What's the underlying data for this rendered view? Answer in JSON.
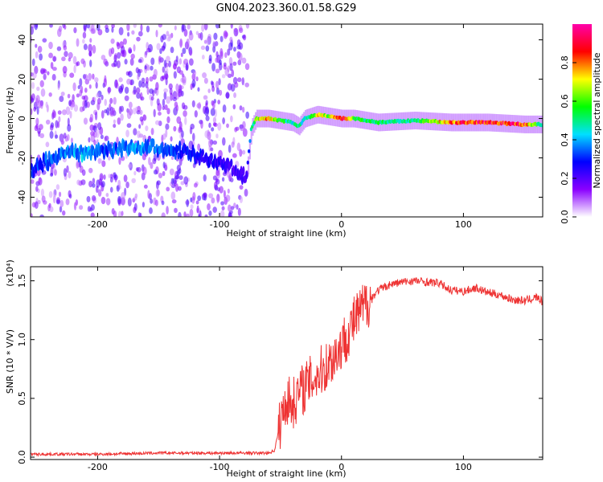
{
  "figure_title": "GN04.2023.360.01.58.G29",
  "chart_data": [
    {
      "type": "heatmap",
      "title": "GN04.2023.360.01.58.G29",
      "xlabel": "Height of straight line (km)",
      "ylabel": "Frequency (Hz)",
      "xlim": [
        -255,
        165
      ],
      "ylim": [
        -50,
        48
      ],
      "x_ticks": [
        -200,
        -100,
        0,
        100
      ],
      "x_tick_labels": [
        "-200",
        "-100",
        "0",
        "100"
      ],
      "y_ticks": [
        -40,
        -20,
        0,
        20,
        40
      ],
      "y_tick_labels": [
        "-40",
        "-20",
        "0",
        "20",
        "40"
      ],
      "colorbar": {
        "label": "Normalized spectral amplitude",
        "range": [
          0.0,
          1.0
        ],
        "ticks": [
          0.0,
          0.2,
          0.4,
          0.6,
          0.8
        ],
        "tick_labels": [
          "0.0",
          "0.2",
          "0.4",
          "0.6",
          "0.8"
        ],
        "colors": [
          "#ffffff",
          "#8a00ff",
          "#0000ff",
          "#00e0ff",
          "#00ff00",
          "#ffff00",
          "#ff0000",
          "#ff00aa"
        ]
      },
      "ridge": {
        "x": [
          -255,
          -230,
          -210,
          -190,
          -170,
          -150,
          -130,
          -110,
          -90,
          -78,
          -74,
          -70,
          -60,
          -50,
          -40,
          -35,
          -30,
          -20,
          -10,
          0,
          10,
          30,
          60,
          90,
          120,
          150,
          165
        ],
        "freq": [
          -26,
          -18,
          -17,
          -16,
          -14,
          -15,
          -17,
          -20,
          -25,
          -30,
          -5,
          0,
          0,
          -1,
          -2,
          -4,
          0,
          2,
          1,
          0,
          0,
          -2,
          -1,
          -2,
          -2,
          -3,
          -3
        ],
        "amplitude": [
          0.3,
          0.35,
          0.4,
          0.32,
          0.38,
          0.35,
          0.28,
          0.26,
          0.22,
          0.2,
          0.45,
          0.62,
          0.78,
          0.55,
          0.45,
          0.5,
          0.4,
          0.7,
          0.6,
          0.95,
          0.55,
          0.5,
          0.48,
          0.82,
          0.9,
          0.85,
          0.4
        ]
      }
    },
    {
      "type": "line",
      "xlabel": "Height of straight line (km)",
      "ylabel": "SNR (10 * V/V)",
      "multiplier_label": "(x10⁴)",
      "xlim": [
        -255,
        165
      ],
      "ylim": [
        -0.02,
        1.62
      ],
      "x_ticks": [
        -200,
        -100,
        0,
        100
      ],
      "x_tick_labels": [
        "-200",
        "-100",
        "0",
        "100"
      ],
      "y_ticks": [
        0.0,
        0.5,
        1.0,
        1.5
      ],
      "y_tick_labels": [
        "0.0",
        "0.5",
        "1.0",
        "1.5"
      ],
      "color": "#ee3333",
      "series": [
        {
          "x": [
            -255,
            -200,
            -150,
            -100,
            -60,
            -55,
            -50,
            -45,
            -40,
            -35,
            -30,
            -25,
            -20,
            -10,
            0,
            10,
            20,
            30,
            40,
            50,
            60,
            70,
            80,
            90,
            100,
            110,
            120,
            130,
            140,
            150,
            160,
            165
          ],
          "y": [
            0.02,
            0.02,
            0.03,
            0.03,
            0.03,
            0.05,
            0.3,
            0.5,
            0.45,
            0.55,
            0.6,
            0.65,
            0.7,
            0.8,
            0.95,
            1.15,
            1.3,
            1.42,
            1.47,
            1.49,
            1.5,
            1.49,
            1.48,
            1.42,
            1.41,
            1.44,
            1.4,
            1.38,
            1.34,
            1.33,
            1.36,
            1.32
          ]
        }
      ]
    }
  ]
}
